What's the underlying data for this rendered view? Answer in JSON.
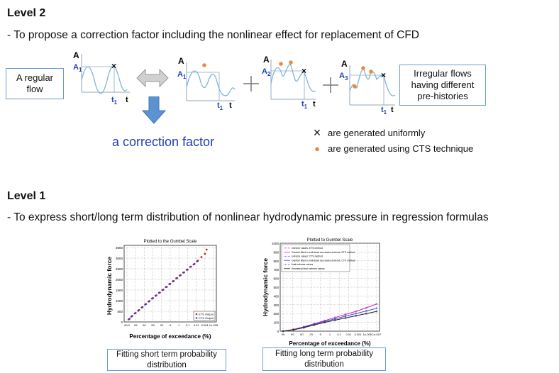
{
  "level2": {
    "heading": "Level 2",
    "description": "- To propose a correction factor including the nonlinear effect for replacement of CFD",
    "regular_box": [
      "A regular",
      "flow"
    ],
    "irregular_box": [
      "Irregular flows",
      "having different",
      "pre-histories"
    ],
    "correction_label": "a correction factor",
    "axis_a": "A",
    "axis_t": "t",
    "label_a1": "A",
    "label_a1_sub": "1",
    "label_a2": "A",
    "label_a2_sub": "2",
    "label_a3": "A",
    "label_a3_sub": "3",
    "label_t1": "t",
    "label_t1_sub": "1",
    "legend": [
      {
        "symbol": "×",
        "text": "are generated  uniformly"
      },
      {
        "symbol": "●",
        "text": "are generated using CTS technique"
      }
    ],
    "colors": {
      "wave": "#7fb4d9",
      "dot": "#f0883a",
      "arrow_down": "#5b93d1",
      "arrow_gray": "#c8c8c8",
      "label_blue": "#1f3fb8"
    }
  },
  "level1": {
    "heading": "Level 1",
    "description": "- To express short/long term distribution of nonlinear hydrodynamic pressure in regression formulas",
    "short_box": [
      "Fitting short term probability",
      "distribution"
    ],
    "long_box": [
      "Fitting long term probability",
      "distribution"
    ]
  },
  "chart_data": [
    {
      "type": "scatter",
      "title": "Plotted to the Gumbel Scale",
      "xlabel": "Percentage of exceedance (%)",
      "ylabel": "Hydrodynamic force",
      "yticks": [
        "0",
        "500",
        "1000",
        "1500",
        "2000",
        "2500",
        "3000",
        "3500"
      ],
      "xticks": [
        "99.9",
        "99",
        "90",
        "50",
        "20",
        "5",
        "1",
        "0.1",
        "0.01",
        "0.001",
        "1e-005"
      ],
      "ylim": [
        0,
        3600
      ],
      "grid": true,
      "legend_position": "bottom-right",
      "series": [
        {
          "name": "ETS Output",
          "color": "#cc2020",
          "marker": "dot",
          "x": [
            0.3,
            0.6,
            1.0,
            1.4,
            1.8,
            2.2,
            2.6,
            3.0,
            3.4,
            3.8,
            4.2,
            4.6,
            5.0,
            5.4,
            5.8,
            6.2,
            6.6,
            7.0,
            7.4,
            7.8,
            8.2,
            8.6,
            9.0,
            9.2
          ],
          "y": [
            150,
            280,
            420,
            560,
            700,
            840,
            980,
            1120,
            1250,
            1380,
            1520,
            1650,
            1790,
            1920,
            2060,
            2200,
            2330,
            2460,
            2600,
            2730,
            2880,
            3050,
            3200,
            3400
          ]
        },
        {
          "name": "CTS Output",
          "color": "#4040c0",
          "marker": "dot",
          "x": [
            0.2,
            0.5,
            0.9,
            1.3,
            1.7,
            2.1,
            2.5,
            2.9,
            3.3,
            3.7,
            4.1,
            4.5,
            4.9,
            5.3,
            5.7,
            6.1,
            6.5,
            6.9,
            7.3,
            7.7,
            8.1
          ],
          "y": [
            120,
            250,
            400,
            530,
            680,
            820,
            960,
            1100,
            1230,
            1370,
            1500,
            1640,
            1780,
            1910,
            2050,
            2180,
            2320,
            2450,
            2590,
            2700,
            2850
          ]
        }
      ]
    },
    {
      "type": "line",
      "title": "Plotted to Gumbel Scale",
      "xlabel": "Percentage of exceedance (%)",
      "ylabel": "Hydrodynamic force",
      "yticks": [
        "0",
        "100",
        "200",
        "300",
        "400",
        "500",
        "600",
        "700",
        "800",
        "900",
        "1000"
      ],
      "xticks": [
        "99",
        "90",
        "50",
        "20",
        "5",
        "1",
        "0.1",
        "0.01",
        "0.001",
        "1e-005",
        "1e-007"
      ],
      "ylim": [
        0,
        1000
      ],
      "grid": true,
      "legend_position": "top-left",
      "legend": [
        "extreme values: ETS method",
        "Gumbel fitted to individual sea states extreme: ETS method",
        "extreme values: CTS method",
        "Gumbel fitted to individual sea states extreme: CTS method",
        "final extreme values",
        "theoretical final extreme values"
      ],
      "series": [
        {
          "name": "Gumbel fitted to individual sea states extreme: ETS method",
          "color": "#d020d0",
          "x": [
            0,
            2,
            4,
            6,
            8,
            10,
            12,
            14,
            16,
            18
          ],
          "y": [
            0,
            20,
            50,
            85,
            120,
            155,
            190,
            225,
            265,
            310
          ]
        },
        {
          "name": "Gumbel fitted to individual sea states extreme: CTS method",
          "color": "#3050d0",
          "x": [
            0,
            2,
            4,
            6,
            8,
            10,
            12,
            14,
            16,
            18
          ],
          "y": [
            0,
            18,
            45,
            78,
            110,
            140,
            170,
            200,
            230,
            260
          ]
        },
        {
          "name": "final extreme values",
          "color": "#202020",
          "x": [
            0,
            2,
            4,
            6,
            8,
            10,
            12,
            14,
            16,
            18
          ],
          "y": [
            0,
            15,
            40,
            70,
            100,
            125,
            150,
            175,
            200,
            225
          ]
        }
      ]
    }
  ]
}
